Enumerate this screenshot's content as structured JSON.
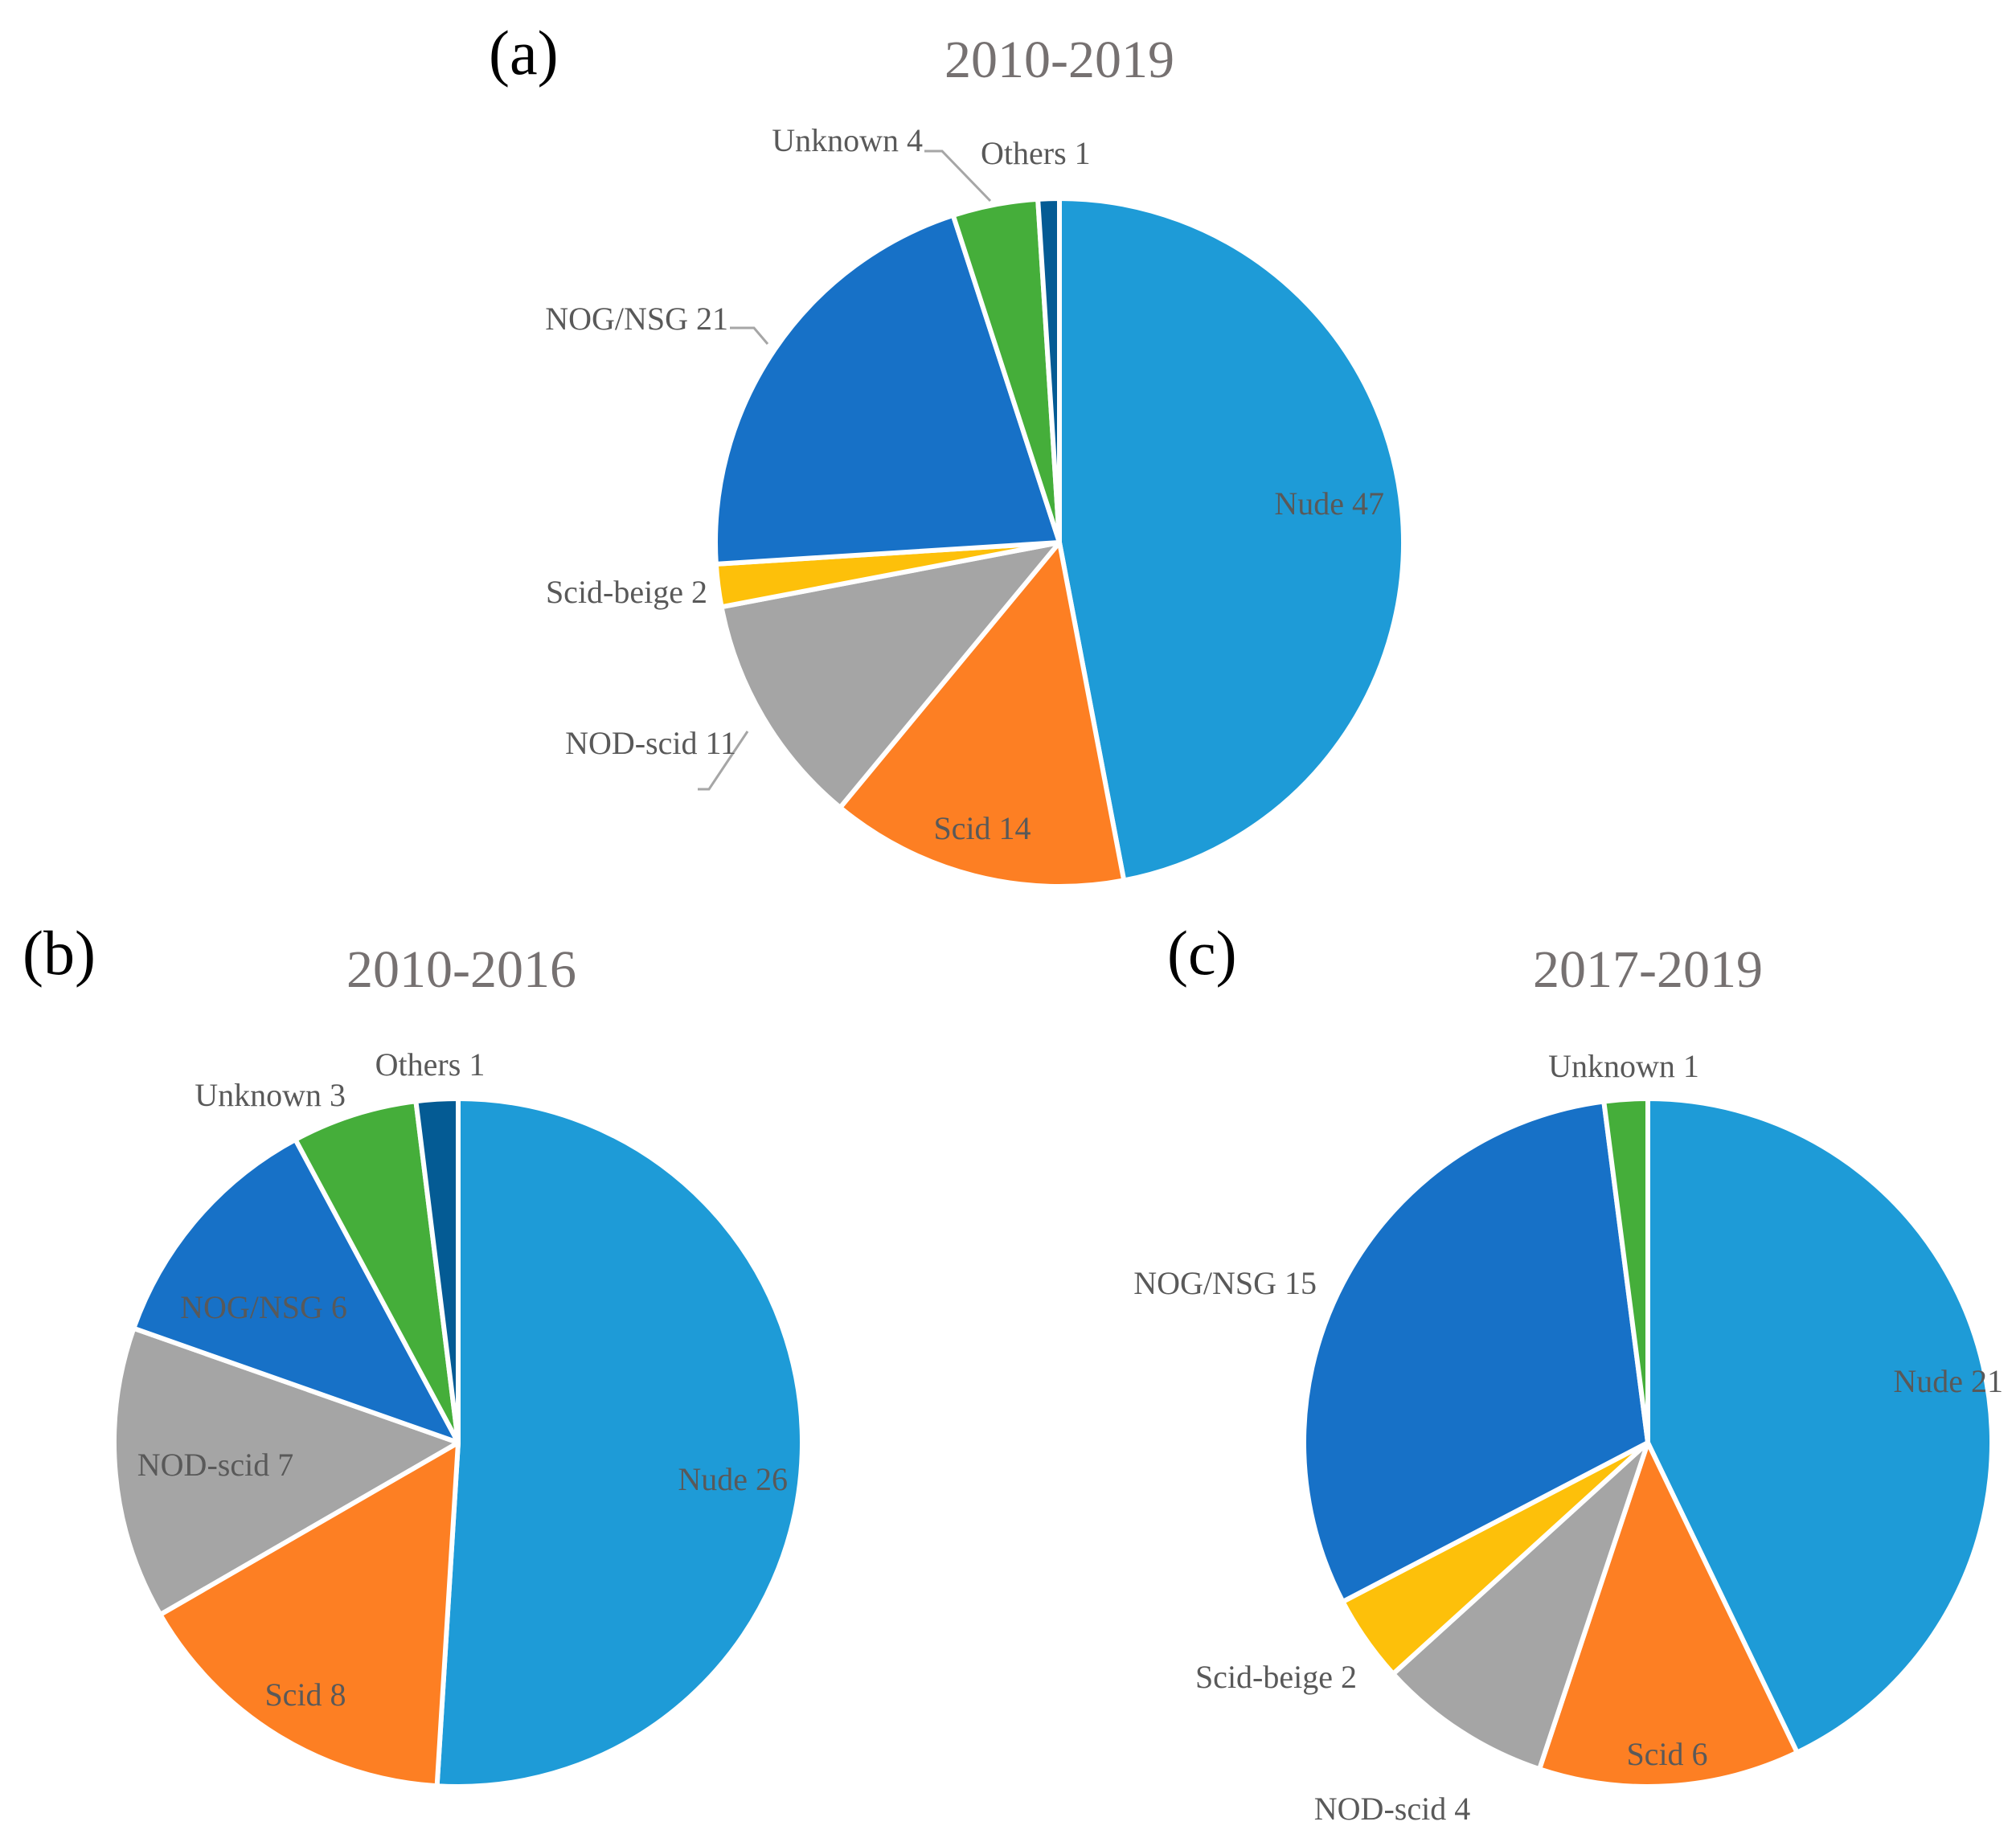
{
  "colors": {
    "Nude": "#1e9bd7",
    "Scid": "#fd7f23",
    "NOD-scid": "#a5a5a5",
    "Scid-beige": "#fdc00a",
    "NOG/NSG": "#1771c7",
    "Unknown": "#45ae3a",
    "Others": "#045b94"
  },
  "chart_data": [
    {
      "panel": "(a)",
      "type": "pie",
      "title": "2010-2019",
      "start_angle_deg": 0,
      "direction": "clockwise",
      "slices": [
        {
          "name": "Nude",
          "value": 47,
          "label": "Nude 47"
        },
        {
          "name": "Scid",
          "value": 14,
          "label": "Scid 14"
        },
        {
          "name": "NOD-scid",
          "value": 11,
          "label": "NOD-scid 11"
        },
        {
          "name": "Scid-beige",
          "value": 2,
          "label": "Scid-beige 2"
        },
        {
          "name": "NOG/NSG",
          "value": 21,
          "label": "NOG/NSG 21"
        },
        {
          "name": "Unknown",
          "value": 4,
          "label": "Unknown 4"
        },
        {
          "name": "Others",
          "value": 1,
          "label": "Others 1"
        }
      ]
    },
    {
      "panel": "(b)",
      "type": "pie",
      "title": "2010-2016",
      "start_angle_deg": 0,
      "direction": "clockwise",
      "slices": [
        {
          "name": "Nude",
          "value": 26,
          "label": "Nude 26"
        },
        {
          "name": "Scid",
          "value": 8,
          "label": "Scid 8"
        },
        {
          "name": "NOD-scid",
          "value": 7,
          "label": "NOD-scid 7"
        },
        {
          "name": "NOG/NSG",
          "value": 6,
          "label": "NOG/NSG 6"
        },
        {
          "name": "Unknown",
          "value": 3,
          "label": "Unknown 3"
        },
        {
          "name": "Others",
          "value": 1,
          "label": "Others 1"
        }
      ]
    },
    {
      "panel": "(c)",
      "type": "pie",
      "title": "2017-2019",
      "start_angle_deg": 0,
      "direction": "clockwise",
      "slices": [
        {
          "name": "Nude",
          "value": 21,
          "label": "Nude 21"
        },
        {
          "name": "Scid",
          "value": 6,
          "label": "Scid 6"
        },
        {
          "name": "NOD-scid",
          "value": 4,
          "label": "NOD-scid 4"
        },
        {
          "name": "Scid-beige",
          "value": 2,
          "label": "Scid-beige 2"
        },
        {
          "name": "NOG/NSG",
          "value": 15,
          "label": "NOG/NSG 15"
        },
        {
          "name": "Unknown",
          "value": 1,
          "label": "Unknown 1"
        }
      ]
    }
  ]
}
